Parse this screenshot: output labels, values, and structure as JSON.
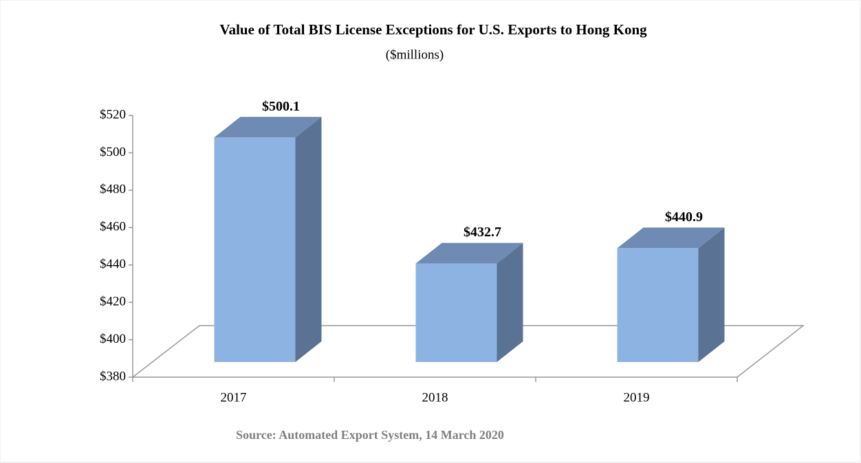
{
  "chart_data": {
    "type": "bar3d",
    "title": "Value of Total BIS License Exceptions for U.S. Exports to Hong Kong",
    "subtitle": "($millions)",
    "source": "Source: Automated Export System, 14 March 2020",
    "categories": [
      "2017",
      "2018",
      "2019"
    ],
    "values": [
      500.1,
      432.7,
      440.9
    ],
    "value_labels": [
      "$500.1",
      "$432.7",
      "$440.9"
    ],
    "color": "#8db3e2",
    "ylim": [
      380,
      520
    ],
    "yticks": [
      {
        "value": 380,
        "label": "$380"
      },
      {
        "value": 400,
        "label": "$400"
      },
      {
        "value": 420,
        "label": "$420"
      },
      {
        "value": 440,
        "label": "$440"
      },
      {
        "value": 460,
        "label": "$460"
      },
      {
        "value": 480,
        "label": "$480"
      },
      {
        "value": 500,
        "label": "$500"
      },
      {
        "value": 520,
        "label": "$520"
      }
    ]
  }
}
